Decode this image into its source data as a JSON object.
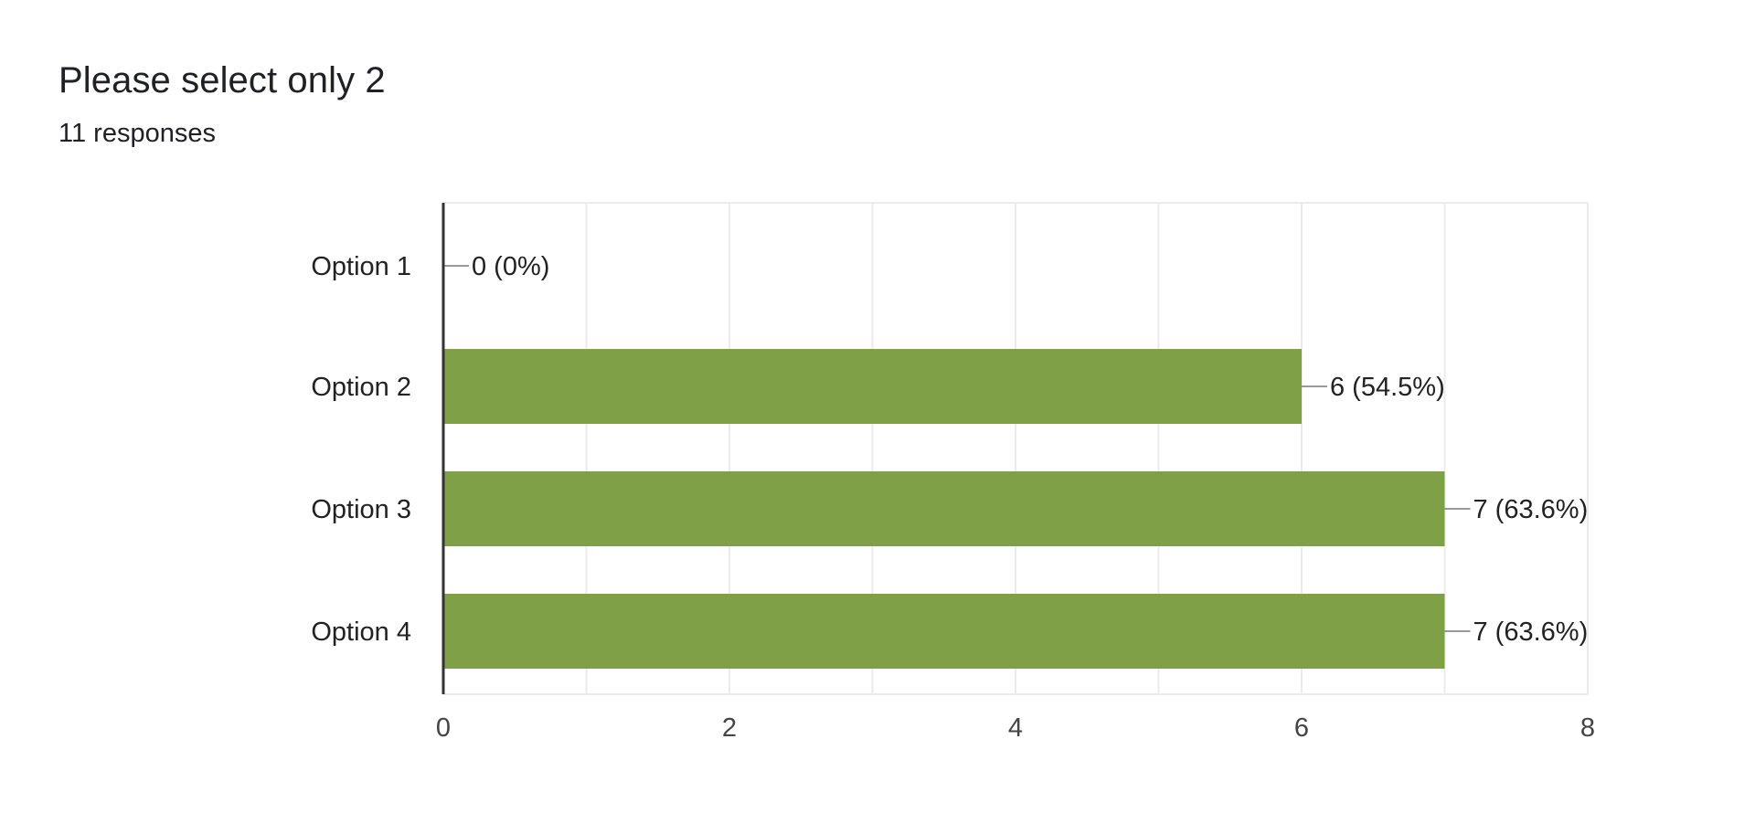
{
  "header": {
    "title": "Please select only 2",
    "responses": "11 responses"
  },
  "chart_data": {
    "type": "bar",
    "orientation": "horizontal",
    "categories": [
      "Option 1",
      "Option 2",
      "Option 3",
      "Option 4"
    ],
    "values": [
      0,
      6,
      7,
      7
    ],
    "data_labels": [
      "0 (0%)",
      "6 (54.5%)",
      "7 (63.6%)",
      "7 (63.6%)"
    ],
    "xlim": [
      0,
      8
    ],
    "xticks": [
      0,
      2,
      4,
      6,
      8
    ],
    "grid": true,
    "bar_color": "#7fa046",
    "title": "Please select only 2",
    "xlabel": "",
    "ylabel": ""
  }
}
